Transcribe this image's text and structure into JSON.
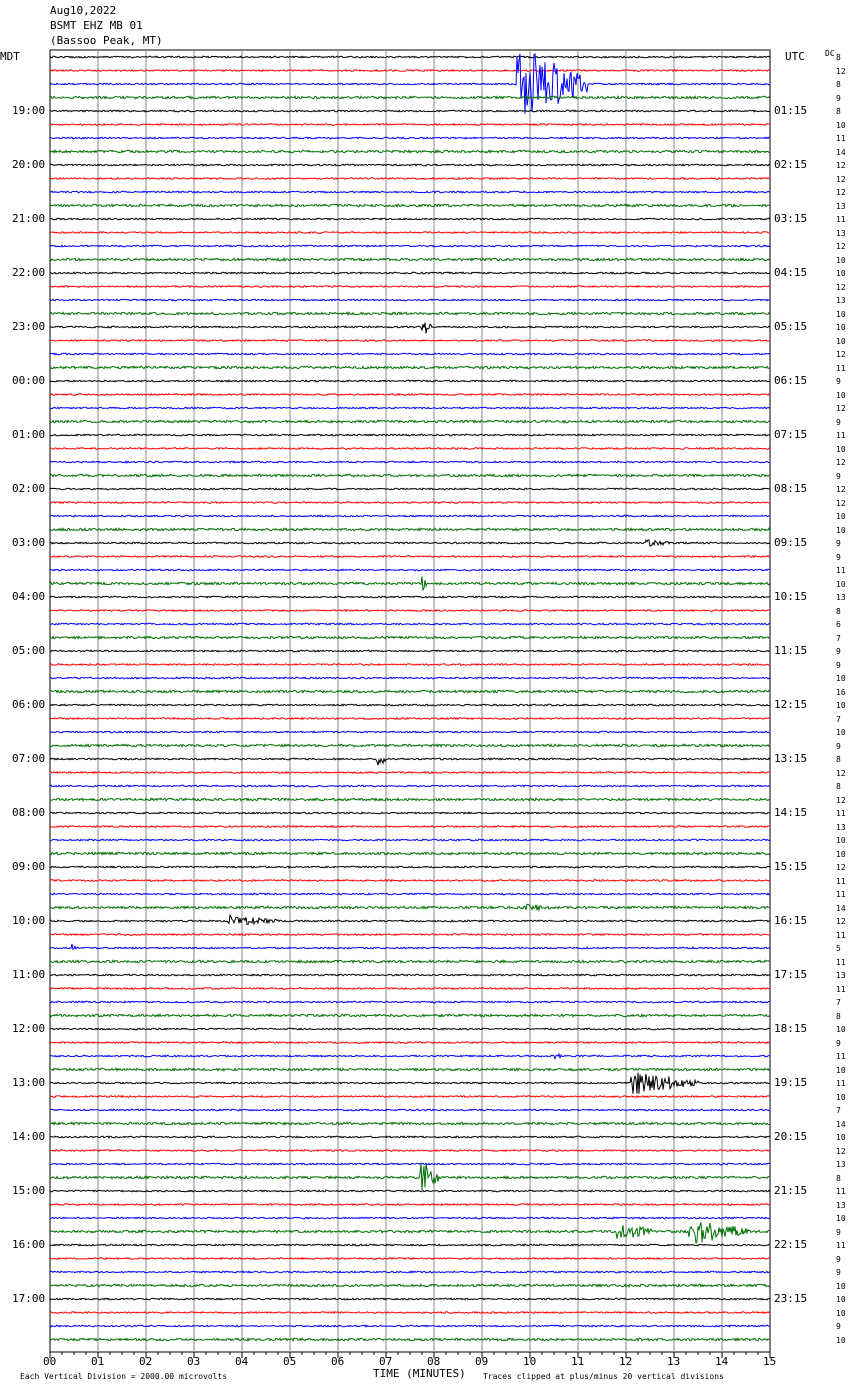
{
  "header": {
    "date": "Aug10,2022",
    "station": "BSMT EHZ MB 01",
    "location": "(Bassoo Peak, MT)"
  },
  "left_zone": "MDT",
  "right_zone": "UTC",
  "dc_label": "DC",
  "footer": {
    "scale": "Each Vertical Division = 2000.00 microvolts",
    "xlabel": "TIME (MINUTES)",
    "clip_note": "Traces clipped at plus/minus 20 vertical divisions"
  },
  "chart_data": {
    "type": "line",
    "xlabel": "TIME (MINUTES)",
    "xlim": [
      0,
      15
    ],
    "x_tick_labels": [
      "00",
      "01",
      "02",
      "03",
      "04",
      "05",
      "06",
      "07",
      "08",
      "09",
      "10",
      "11",
      "12",
      "13",
      "14",
      "15"
    ],
    "grid": true,
    "trace_colors": [
      "#000000",
      "#ff0000",
      "#0000ff",
      "#007000"
    ],
    "left_hour_labels": [
      "19:00",
      "20:00",
      "21:00",
      "22:00",
      "23:00",
      "00:00",
      "01:00",
      "02:00",
      "03:00",
      "04:00",
      "05:00",
      "06:00",
      "07:00",
      "08:00",
      "09:00",
      "10:00",
      "11:00",
      "12:00",
      "13:00",
      "14:00",
      "15:00",
      "16:00",
      "17:00"
    ],
    "right_hour_labels": [
      "01:15",
      "02:15",
      "03:15",
      "04:15",
      "05:15",
      "06:15",
      "07:15",
      "08:15",
      "09:15",
      "10:15",
      "11:15",
      "12:15",
      "13:15",
      "14:15",
      "15:15",
      "16:15",
      "17:15",
      "18:15",
      "19:15",
      "20:15",
      "21:15",
      "22:15",
      "23:15"
    ],
    "dc_offsets": [
      8,
      12,
      8,
      9,
      8,
      10,
      11,
      14,
      12,
      12,
      12,
      13,
      11,
      13,
      12,
      10,
      10,
      12,
      13,
      10,
      10,
      10,
      12,
      11,
      9,
      10,
      12,
      9,
      11,
      10,
      12,
      9,
      12,
      12,
      10,
      10,
      9,
      9,
      11,
      10,
      13,
      8,
      6,
      7,
      9,
      9,
      10,
      16,
      10,
      7,
      10,
      9,
      8,
      12,
      8,
      12,
      11,
      13,
      10,
      10,
      12,
      11,
      11,
      14,
      12,
      11,
      5,
      11,
      13,
      11,
      7,
      8,
      10,
      9,
      11,
      10,
      11,
      10,
      7,
      14,
      10,
      12,
      13,
      8,
      11,
      13,
      10,
      9,
      11,
      9,
      9,
      10,
      10,
      10,
      9,
      10
    ],
    "events": [
      {
        "trace": 2,
        "start_min": 9.7,
        "end_min": 11.2,
        "amplitude_div": 20
      },
      {
        "trace": 20,
        "start_min": 7.75,
        "end_min": 7.95,
        "amplitude_div": 6
      },
      {
        "trace": 36,
        "start_min": 12.4,
        "end_min": 13.0,
        "amplitude_div": 2
      },
      {
        "trace": 39,
        "start_min": 7.75,
        "end_min": 7.85,
        "amplitude_div": 4
      },
      {
        "trace": 52,
        "start_min": 6.8,
        "end_min": 7.0,
        "amplitude_div": 6
      },
      {
        "trace": 63,
        "start_min": 9.9,
        "end_min": 10.6,
        "amplitude_div": 2
      },
      {
        "trace": 64,
        "start_min": 3.7,
        "end_min": 4.8,
        "amplitude_div": 3
      },
      {
        "trace": 66,
        "start_min": 0.45,
        "end_min": 0.55,
        "amplitude_div": 3
      },
      {
        "trace": 74,
        "start_min": 10.5,
        "end_min": 10.7,
        "amplitude_div": 2
      },
      {
        "trace": 76,
        "start_min": 12.1,
        "end_min": 13.5,
        "amplitude_div": 6
      },
      {
        "trace": 83,
        "start_min": 7.7,
        "end_min": 8.1,
        "amplitude_div": 9
      },
      {
        "trace": 87,
        "start_min": 11.8,
        "end_min": 12.6,
        "amplitude_div": 5
      },
      {
        "trace": 87,
        "start_min": 13.3,
        "end_min": 14.6,
        "amplitude_div": 7
      }
    ]
  }
}
